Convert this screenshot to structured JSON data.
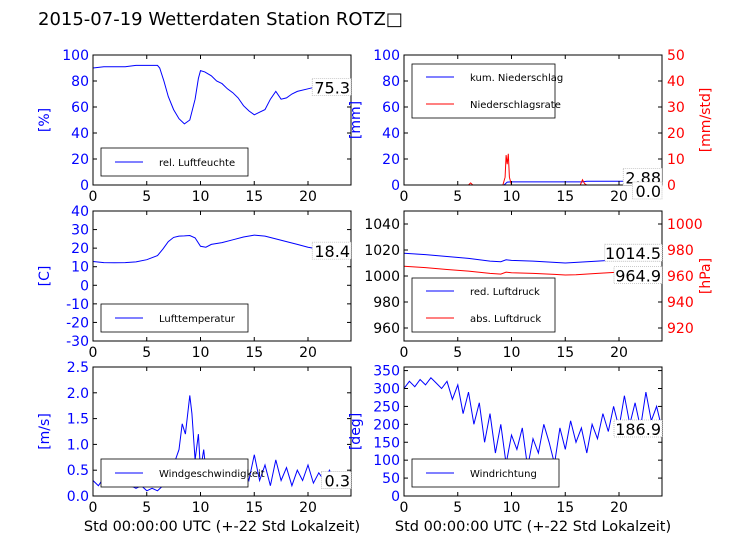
{
  "title": "2015-07-19 Wetterdaten Station ROTZ□",
  "colors": {
    "primary": "#0000ff",
    "secondary": "#ff0000",
    "light": "#8080ff",
    "axes": "#000000"
  },
  "xlabel": "Std 00:00:00 UTC (+-22 Std Lokalzeit)",
  "chart_data": [
    {
      "type": "line",
      "panel": "top-left",
      "ylabel": "[%]",
      "xlim": [
        0,
        24
      ],
      "ylim": [
        0,
        100
      ],
      "xticks": [
        0,
        5,
        10,
        15,
        20
      ],
      "yticks": [
        0,
        20,
        40,
        60,
        80,
        100
      ],
      "legend": {
        "placement": "lower-left",
        "entries": [
          {
            "label": "rel. Luftfeuchte",
            "color": "#0000ff"
          }
        ]
      },
      "last_value_label": "75.3",
      "series": [
        {
          "name": "rel. Luftfeuchte",
          "color": "#0000ff",
          "axis": "left",
          "x": [
            0,
            1,
            2,
            3,
            4,
            5,
            6,
            6.2,
            6.6,
            7,
            7.5,
            8,
            8.5,
            9,
            9.5,
            9.8,
            10,
            10.4,
            11,
            11.5,
            12,
            12.5,
            13,
            13.5,
            14,
            14.5,
            15,
            15.5,
            16,
            16.5,
            17,
            17.5,
            18,
            18.5,
            19,
            20,
            21,
            22,
            23,
            24
          ],
          "y": [
            90,
            91,
            91,
            91,
            92,
            92,
            92,
            90,
            80,
            68,
            58,
            51,
            47,
            50,
            66,
            82,
            88,
            87,
            84,
            80,
            78,
            74,
            71,
            67,
            61,
            57,
            54,
            56,
            58,
            66,
            72,
            66,
            67,
            70,
            72,
            74,
            76,
            78,
            76,
            75
          ]
        }
      ]
    },
    {
      "type": "line",
      "panel": "top-right",
      "ylabel": "[mm]",
      "ylabel_right": "[mm/std]",
      "xlim": [
        0,
        24
      ],
      "ylim": [
        0,
        100
      ],
      "ylim_right": [
        0,
        50
      ],
      "xticks": [
        0,
        5,
        10,
        15,
        20
      ],
      "yticks": [
        0,
        20,
        40,
        60,
        80,
        100
      ],
      "yticks_right": [
        0,
        10,
        20,
        30,
        40,
        50
      ],
      "legend": {
        "placement": "upper-left",
        "entries": [
          {
            "label": "kum. Niederschlag",
            "color": "#0000ff"
          },
          {
            "label": "Niederschlagsrate",
            "color": "#ff0000"
          }
        ]
      },
      "last_value_labels": [
        "2.88",
        "0.0"
      ],
      "series": [
        {
          "name": "kum. Niederschlag",
          "color": "#0000ff",
          "axis": "left",
          "x": [
            0,
            9.3,
            9.6,
            10,
            16.6,
            17,
            24
          ],
          "y": [
            0,
            0,
            2.2,
            2.4,
            2.4,
            2.88,
            2.88
          ]
        },
        {
          "name": "Niederschlagsrate",
          "color": "#ff0000",
          "axis": "right",
          "x": [
            0,
            6,
            6.2,
            6.4,
            9.2,
            9.4,
            9.5,
            9.6,
            9.7,
            9.8,
            10,
            16.4,
            16.6,
            16.8,
            17,
            24
          ],
          "y": [
            0,
            0,
            0.8,
            0,
            0,
            3,
            11.5,
            8,
            12,
            3,
            0,
            0,
            2,
            0.5,
            0,
            0
          ]
        }
      ]
    },
    {
      "type": "line",
      "panel": "middle-left",
      "ylabel": "[C]",
      "xlim": [
        0,
        24
      ],
      "ylim": [
        -30,
        40
      ],
      "xticks": [
        0,
        5,
        10,
        15,
        20
      ],
      "yticks": [
        -30,
        -20,
        -10,
        0,
        10,
        20,
        30,
        40
      ],
      "legend": {
        "placement": "lower-left",
        "entries": [
          {
            "label": "Lufttemperatur",
            "color": "#0000ff"
          }
        ]
      },
      "last_value_label": "18.4",
      "series": [
        {
          "name": "Lufttemperatur",
          "color": "#0000ff",
          "axis": "left",
          "x": [
            0,
            1,
            2,
            3,
            4,
            5,
            6,
            6.5,
            7,
            7.5,
            8,
            8.5,
            9,
            9.5,
            10,
            10.5,
            11,
            12,
            13,
            14,
            15,
            16,
            17,
            18,
            19,
            20,
            21,
            22,
            23,
            24
          ],
          "y": [
            12.8,
            12.2,
            12.1,
            12.2,
            12.6,
            13.8,
            16,
            19.5,
            23.5,
            25.8,
            26.5,
            26.6,
            26.8,
            25.5,
            21,
            20.5,
            22,
            23,
            24.5,
            26,
            27,
            26.5,
            25,
            23.5,
            22,
            20.5,
            19.5,
            19,
            18.6,
            18.4
          ]
        }
      ]
    },
    {
      "type": "line",
      "panel": "middle-right",
      "ylabel_right": "[hPa]",
      "xlim": [
        0,
        24
      ],
      "ylim": [
        950,
        1050
      ],
      "ylim_right": [
        910,
        1010
      ],
      "xticks": [
        0,
        5,
        10,
        15,
        20
      ],
      "yticks": [
        960,
        980,
        1000,
        1020,
        1040
      ],
      "yticks_right": [
        920,
        940,
        960,
        980,
        1000
      ],
      "legend": {
        "placement": "lower-left",
        "entries": [
          {
            "label": "red. Luftdruck",
            "color": "#0000ff"
          },
          {
            "label": "abs. Luftdruck",
            "color": "#ff0000"
          }
        ]
      },
      "last_value_labels": [
        "1014.5",
        "964.9"
      ],
      "series": [
        {
          "name": "red. Luftdruck",
          "color": "#0000ff",
          "axis": "left",
          "x": [
            0,
            2,
            4,
            6,
            8,
            9,
            9.5,
            10,
            12,
            14,
            15,
            16,
            18,
            20,
            22,
            24
          ],
          "y": [
            1017.5,
            1016.5,
            1015,
            1013.5,
            1011.5,
            1011,
            1012.5,
            1012,
            1011.5,
            1010.5,
            1010,
            1010.5,
            1011.5,
            1012.5,
            1013.5,
            1014.5
          ]
        },
        {
          "name": "abs. Luftdruck",
          "color": "#ff0000",
          "axis": "right",
          "x": [
            0,
            2,
            4,
            6,
            8,
            9,
            9.5,
            10,
            12,
            14,
            15,
            16,
            18,
            20,
            22,
            24
          ],
          "y": [
            967.5,
            966.5,
            965,
            963.8,
            962,
            961.5,
            963,
            962.5,
            962,
            961.2,
            960.8,
            961,
            962,
            963,
            964,
            964.9
          ]
        }
      ]
    },
    {
      "type": "line",
      "panel": "bottom-left",
      "ylabel": "[m/s]",
      "xlim": [
        0,
        24
      ],
      "ylim": [
        0,
        2.5
      ],
      "xticks": [
        0,
        5,
        10,
        15,
        20
      ],
      "yticks": [
        0.0,
        0.5,
        1.0,
        1.5,
        2.0,
        2.5
      ],
      "legend": {
        "placement": "lower-left",
        "entries": [
          {
            "label": "Windgeschwindigkeit",
            "color": "#0000ff"
          }
        ]
      },
      "last_value_label": "0.3",
      "series": [
        {
          "name": "Windgeschwindigkeit",
          "color": "#0000ff",
          "axis": "left",
          "x": [
            0,
            0.5,
            1,
            1.5,
            2,
            2.5,
            3,
            3.5,
            4,
            4.5,
            5,
            5.5,
            6,
            6.5,
            7,
            7.5,
            8,
            8.3,
            8.6,
            9,
            9.2,
            9.5,
            9.8,
            10,
            10.3,
            10.6,
            11,
            11.5,
            12,
            12.5,
            13,
            13.5,
            14,
            14.5,
            15,
            15.5,
            16,
            16.5,
            17,
            17.5,
            18,
            18.5,
            19,
            19.5,
            20,
            20.5,
            21,
            21.5,
            22,
            22.5,
            23,
            23.5,
            24
          ],
          "y": [
            0.3,
            0.2,
            0.35,
            0.25,
            0.3,
            0.2,
            0.25,
            0.2,
            0.15,
            0.2,
            0.1,
            0.15,
            0.1,
            0.2,
            0.4,
            0.6,
            0.9,
            1.4,
            1.2,
            1.95,
            1.6,
            0.7,
            1.2,
            0.5,
            0.9,
            0.3,
            0.6,
            0.2,
            0.5,
            0.4,
            0.6,
            0.2,
            0.55,
            0.3,
            0.8,
            0.3,
            0.6,
            0.2,
            0.7,
            0.3,
            0.55,
            0.2,
            0.5,
            0.3,
            0.6,
            0.25,
            0.45,
            0.3,
            0.5,
            0.25,
            0.35,
            0.3,
            0.3
          ]
        }
      ]
    },
    {
      "type": "line",
      "panel": "bottom-right",
      "ylabel": "[deg]",
      "xlim": [
        0,
        24
      ],
      "ylim": [
        0,
        360
      ],
      "xticks": [
        0,
        5,
        10,
        15,
        20
      ],
      "yticks": [
        0,
        50,
        100,
        150,
        200,
        250,
        300,
        350
      ],
      "legend": {
        "placement": "lower-left",
        "entries": [
          {
            "label": "Windrichtung",
            "color": "#0000ff"
          }
        ]
      },
      "last_value_label": "186.9",
      "series": [
        {
          "name": "Windrichtung",
          "color": "#0000ff",
          "axis": "left",
          "x": [
            0,
            0.5,
            1,
            1.5,
            2,
            2.5,
            3,
            3.5,
            4,
            4.5,
            5,
            5.5,
            6,
            6.5,
            7,
            7.5,
            8,
            8.5,
            9,
            9.5,
            10,
            10.5,
            11,
            11.5,
            12,
            12.5,
            13,
            13.5,
            14,
            14.5,
            15,
            15.5,
            16,
            16.5,
            17,
            17.5,
            18,
            18.5,
            19,
            19.5,
            20,
            20.5,
            21,
            21.5,
            22,
            22.5,
            23,
            23.5,
            24
          ],
          "y": [
            300,
            320,
            305,
            325,
            310,
            330,
            315,
            300,
            320,
            270,
            310,
            230,
            290,
            200,
            260,
            150,
            230,
            120,
            200,
            90,
            170,
            130,
            190,
            80,
            160,
            120,
            200,
            150,
            90,
            190,
            130,
            210,
            150,
            190,
            120,
            200,
            160,
            230,
            180,
            250,
            190,
            280,
            200,
            260,
            190,
            290,
            210,
            250,
            187
          ]
        }
      ]
    }
  ]
}
